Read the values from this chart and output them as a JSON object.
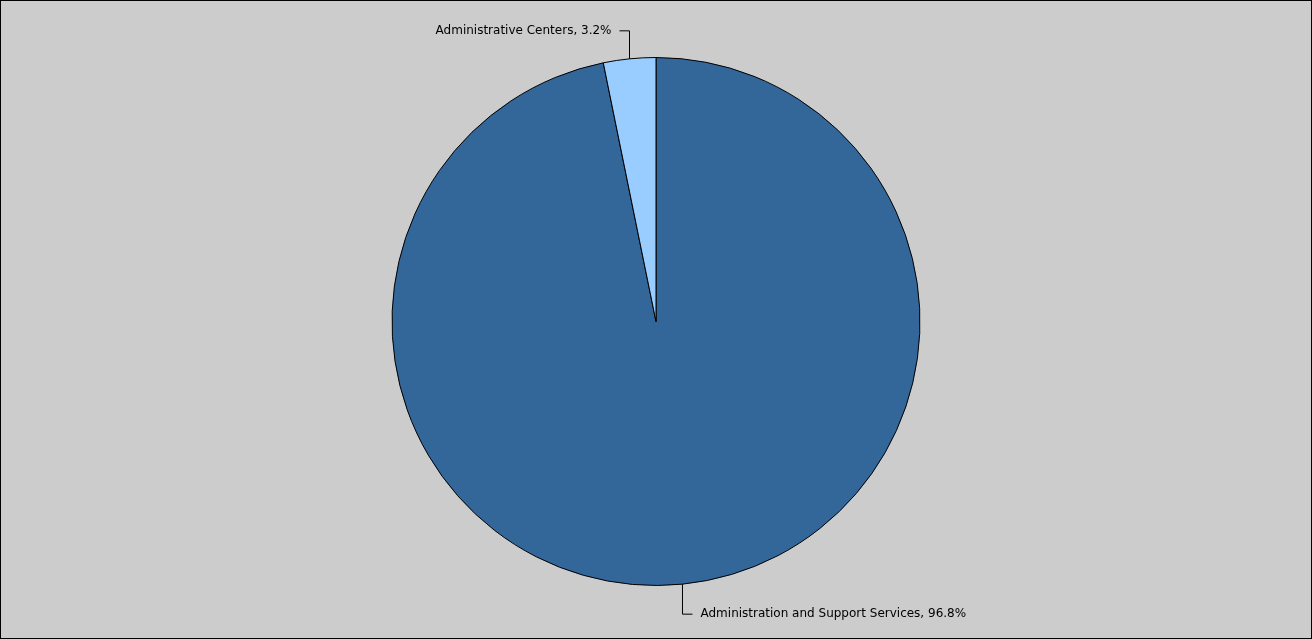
{
  "chart_data": {
    "type": "pie",
    "categories": [
      "Administration and Support Services",
      "Administrative Centers"
    ],
    "values": [
      96.8,
      3.2
    ],
    "colors": [
      "#336699",
      "#99ccff"
    ],
    "value_labels": [
      "96.8%",
      "3.2%"
    ],
    "legend": false
  }
}
